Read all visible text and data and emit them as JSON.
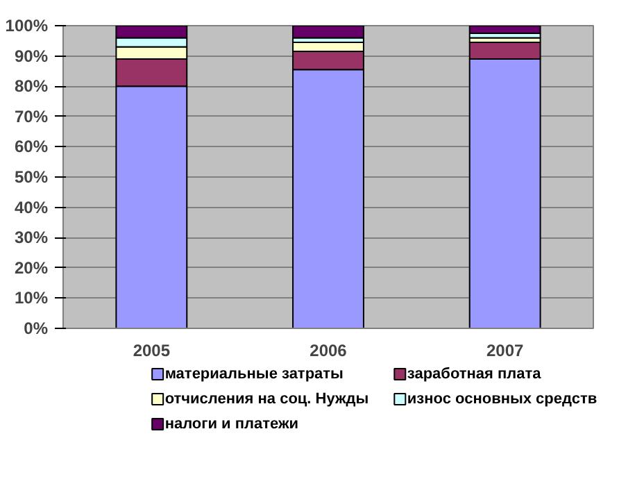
{
  "chart_data": {
    "type": "bar",
    "stacked": true,
    "categories": [
      "2005",
      "2006",
      "2007"
    ],
    "series": [
      {
        "name": "материальные затраты",
        "color": "#9999ff",
        "values": [
          80,
          85.5,
          89
        ]
      },
      {
        "name": "заработная плата",
        "color": "#993366",
        "values": [
          9,
          6,
          5.5
        ]
      },
      {
        "name": "отчисления на соц. Нужды",
        "color": "#ffffcc",
        "values": [
          4,
          3,
          1.5
        ]
      },
      {
        "name": "износ основных средств",
        "color": "#ccffff",
        "values": [
          3,
          1.5,
          1.5
        ]
      },
      {
        "name": "налоги и платежи",
        "color": "#660066",
        "values": [
          4,
          4,
          2.5
        ]
      }
    ],
    "ylim": [
      0,
      100
    ],
    "yticks": [
      {
        "value": 0,
        "label": "0%"
      },
      {
        "value": 10,
        "label": "10%"
      },
      {
        "value": 20,
        "label": "20%"
      },
      {
        "value": 30,
        "label": "30%"
      },
      {
        "value": 40,
        "label": "40%"
      },
      {
        "value": 50,
        "label": "50%"
      },
      {
        "value": 60,
        "label": "60%"
      },
      {
        "value": 70,
        "label": "70%"
      },
      {
        "value": 80,
        "label": "80%"
      },
      {
        "value": 90,
        "label": "90%"
      },
      {
        "value": 100,
        "label": "100%"
      }
    ],
    "grid": "y",
    "legend": "bottom"
  }
}
